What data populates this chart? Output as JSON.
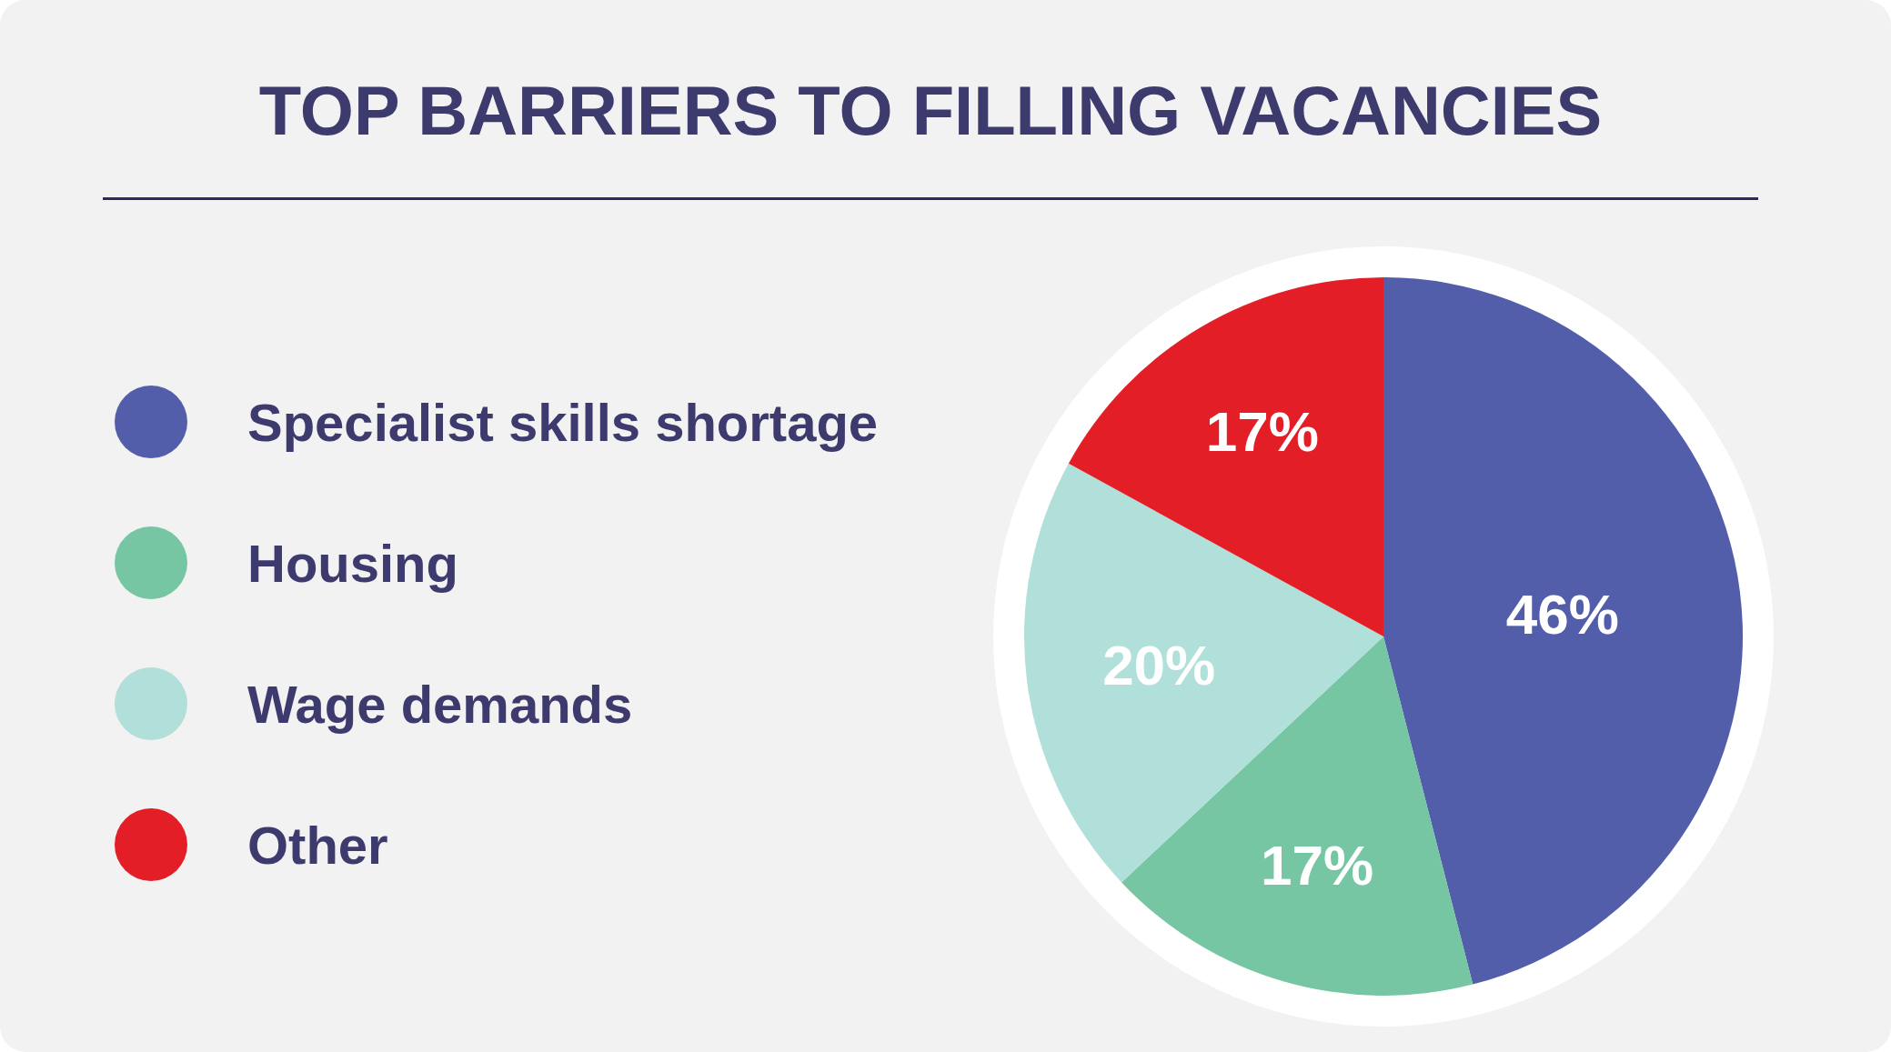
{
  "chart_data": {
    "type": "pie",
    "title": "TOP BARRIERS TO FILLING VACANCIES",
    "categories": [
      "Specialist skills shortage",
      "Housing",
      "Wage demands",
      "Other"
    ],
    "values": [
      46,
      17,
      20,
      17
    ],
    "colors": [
      "#525ea9",
      "#76c6a3",
      "#b1dfd9",
      "#e31e26"
    ],
    "value_labels": [
      "46%",
      "17%",
      "20%",
      "17%"
    ],
    "legend": "left"
  }
}
